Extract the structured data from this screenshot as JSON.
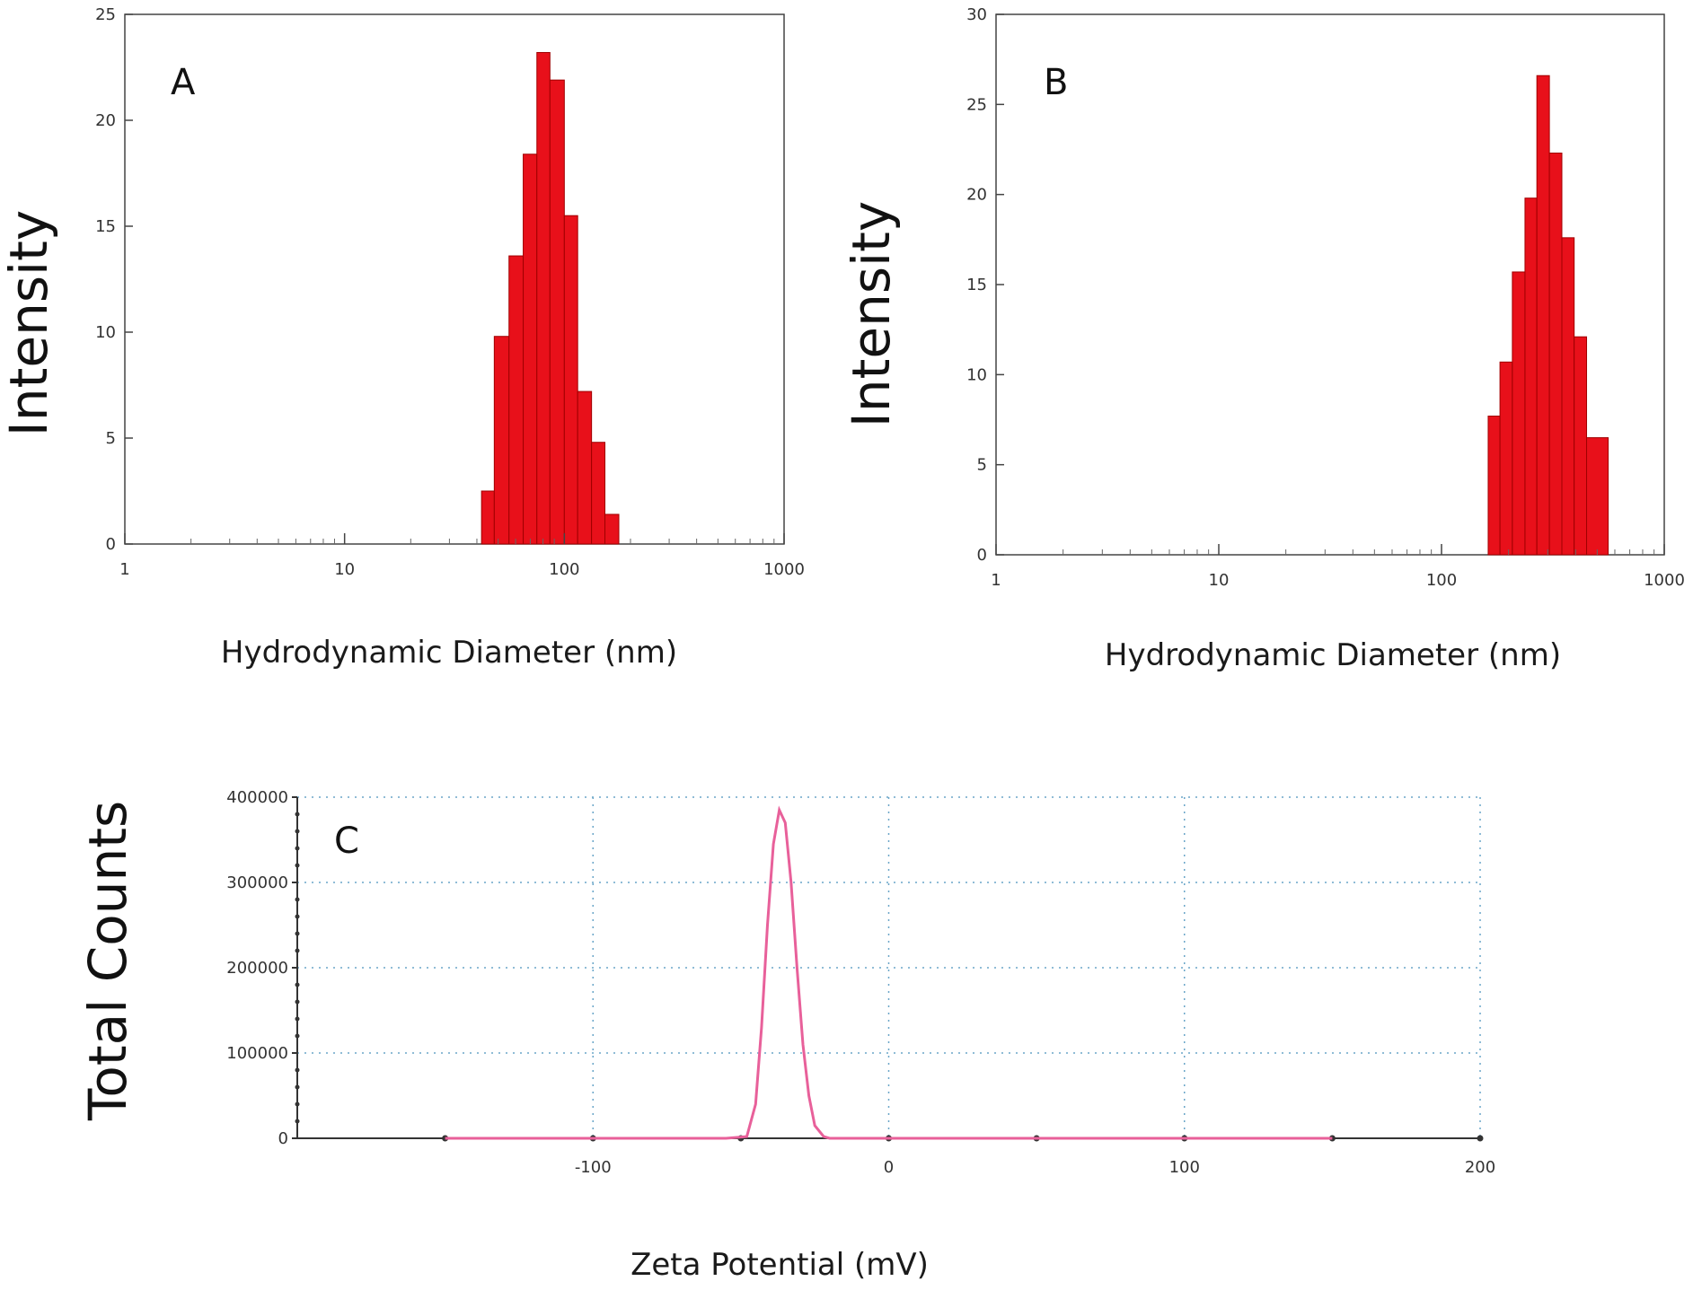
{
  "chart_data": [
    {
      "panel": "A",
      "type": "bar",
      "xlabel": "Hydrodynamic Diameter  (nm)",
      "ylabel": "Intensity",
      "x_scale": "log",
      "xlim": [
        1,
        1000
      ],
      "ylim": [
        0,
        25
      ],
      "xticks": [
        "1",
        "10",
        "100",
        "1000"
      ],
      "yticks": [
        "0",
        "5",
        "10",
        "15",
        "20",
        "25"
      ],
      "bars": [
        {
          "x0": 42,
          "x1": 48,
          "y": 2.5
        },
        {
          "x0": 48,
          "x1": 56,
          "y": 9.8
        },
        {
          "x0": 56,
          "x1": 65,
          "y": 13.6
        },
        {
          "x0": 65,
          "x1": 75,
          "y": 18.4
        },
        {
          "x0": 75,
          "x1": 86,
          "y": 23.2
        },
        {
          "x0": 86,
          "x1": 100,
          "y": 21.9
        },
        {
          "x0": 100,
          "x1": 115,
          "y": 15.5
        },
        {
          "x0": 115,
          "x1": 133,
          "y": 7.2
        },
        {
          "x0": 133,
          "x1": 153,
          "y": 4.8
        },
        {
          "x0": 153,
          "x1": 177,
          "y": 1.4
        }
      ],
      "color": "#e8101a"
    },
    {
      "panel": "B",
      "type": "bar",
      "xlabel": "Hydrodynamic Diameter  (nm)",
      "ylabel": "Intensity",
      "x_scale": "log",
      "xlim": [
        1,
        1000
      ],
      "ylim": [
        0,
        30
      ],
      "xticks": [
        "1",
        "10",
        "100",
        "1000"
      ],
      "yticks": [
        "0",
        "5",
        "10",
        "15",
        "20",
        "25",
        "30"
      ],
      "bars": [
        {
          "x0": 162,
          "x1": 183,
          "y": 7.7
        },
        {
          "x0": 183,
          "x1": 208,
          "y": 10.7
        },
        {
          "x0": 208,
          "x1": 237,
          "y": 15.7
        },
        {
          "x0": 237,
          "x1": 268,
          "y": 19.8
        },
        {
          "x0": 268,
          "x1": 305,
          "y": 26.6
        },
        {
          "x0": 305,
          "x1": 347,
          "y": 22.3
        },
        {
          "x0": 347,
          "x1": 394,
          "y": 17.6
        },
        {
          "x0": 394,
          "x1": 448,
          "y": 12.1
        },
        {
          "x0": 448,
          "x1": 560,
          "y": 6.5
        }
      ],
      "color": "#e8101a"
    },
    {
      "panel": "C",
      "type": "line",
      "xlabel": "Zeta Potential (mV)",
      "ylabel": "Total Counts",
      "xlim": [
        -200,
        200
      ],
      "ylim": [
        0,
        400000
      ],
      "xticks": [
        "-100",
        "0",
        "100",
        "200"
      ],
      "xtick_values": [
        -100,
        0,
        100,
        200
      ],
      "yticks": [
        "0",
        "100000",
        "200000",
        "300000",
        "400000"
      ],
      "grid": true,
      "series": [
        {
          "x": [
            -150,
            -55,
            -48,
            -45,
            -43,
            -41,
            -39,
            -37,
            -35,
            -33,
            -31,
            -29,
            -27,
            -25,
            -22,
            -20,
            150
          ],
          "y": [
            0,
            0,
            2000,
            40000,
            130000,
            250000,
            345000,
            385000,
            370000,
            300000,
            200000,
            110000,
            50000,
            15000,
            2000,
            0,
            0
          ]
        }
      ],
      "color": "#e8609a"
    }
  ]
}
